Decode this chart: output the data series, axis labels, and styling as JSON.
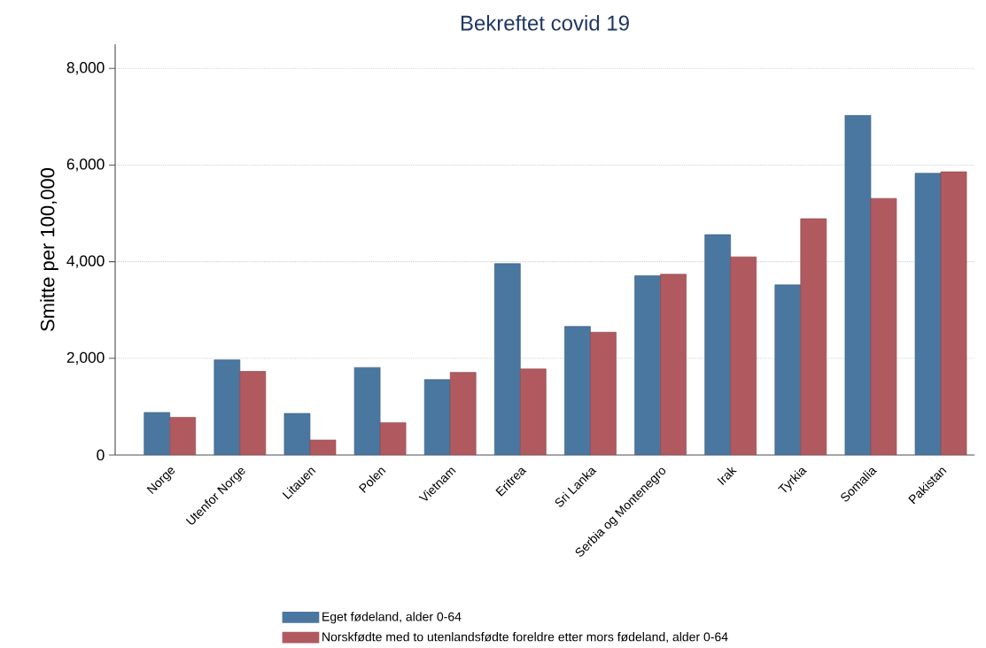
{
  "chart_data": {
    "type": "bar",
    "title": "Bekreftet covid 19",
    "ylabel": "Smitte per 100,000",
    "categories": [
      "Norge",
      "Utenfor Norge",
      "Litauen",
      "Polen",
      "Vietnam",
      "Eritrea",
      "Sri Lanka",
      "Serbia og Montenegro",
      "Irak",
      "Tyrkia",
      "Somalia",
      "Pakistan"
    ],
    "series": [
      {
        "name": "Eget fødeland, alder 0-64",
        "color": "#4a77a0",
        "values": [
          880,
          1970,
          860,
          1810,
          1560,
          3960,
          2660,
          3710,
          4560,
          3520,
          7030,
          5830
        ]
      },
      {
        "name": "Norskfødte med to utenlandsfødte foreldre etter mors fødeland, alder 0-64",
        "color": "#b05a60",
        "values": [
          780,
          1730,
          310,
          670,
          1710,
          1780,
          2540,
          3740,
          4100,
          4890,
          5310,
          5860
        ]
      }
    ],
    "ylim": [
      0,
      8500
    ],
    "yticks": [
      {
        "value": 0,
        "label": "0"
      },
      {
        "value": 2000,
        "label": "2,000"
      },
      {
        "value": 4000,
        "label": "4,000"
      },
      {
        "value": 6000,
        "label": "6,000"
      },
      {
        "value": 8000,
        "label": "8,000"
      }
    ],
    "grid": "y",
    "legend": "bottom"
  }
}
